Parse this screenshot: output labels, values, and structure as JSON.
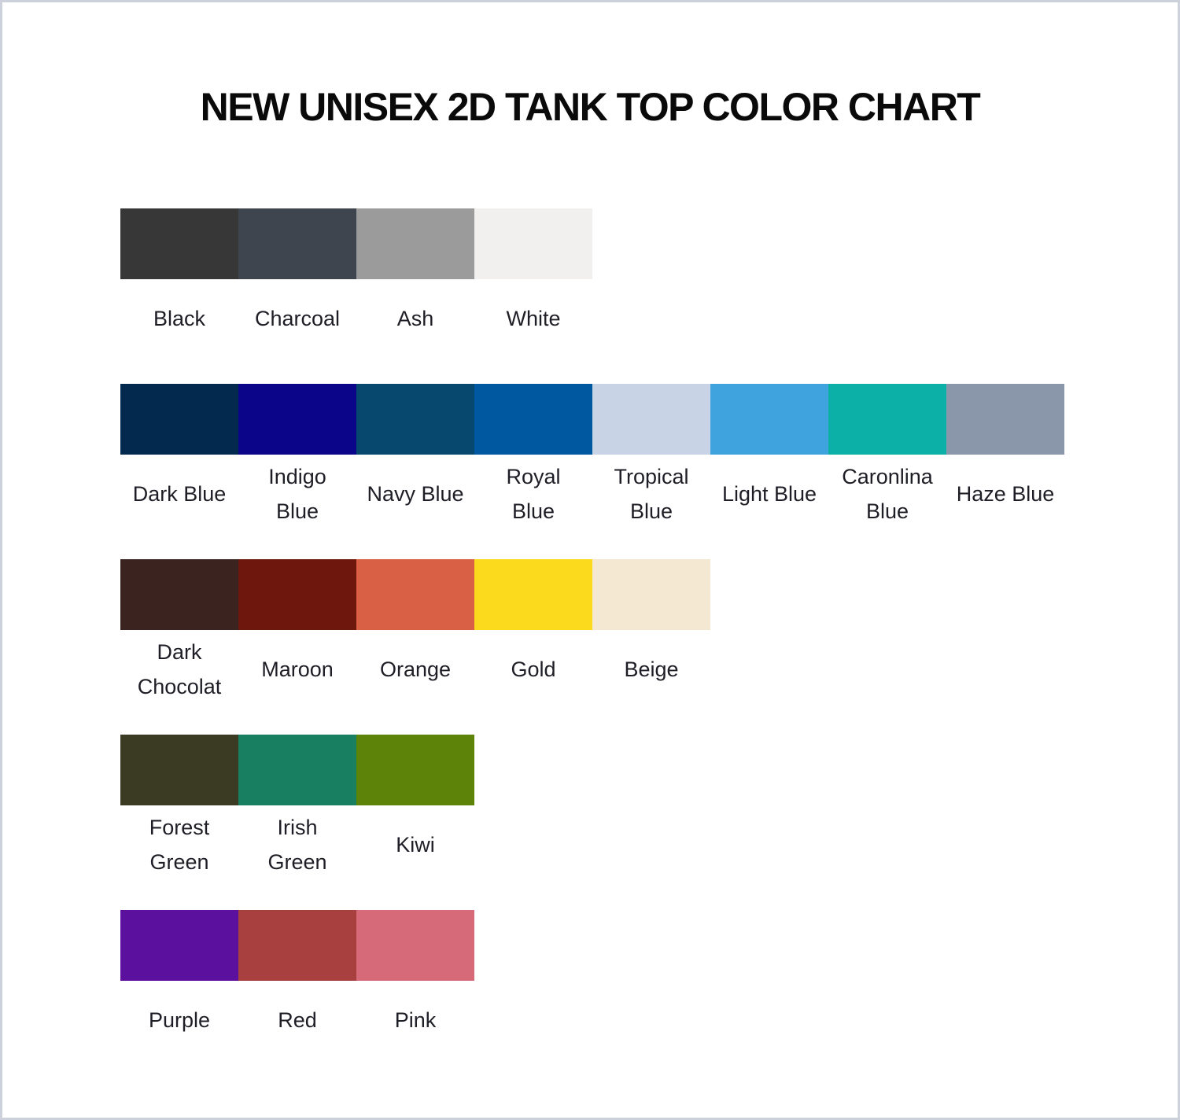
{
  "title": "NEW UNISEX 2D TANK TOP COLOR CHART",
  "chart_data": {
    "type": "table",
    "title": "NEW UNISEX 2D TANK TOP COLOR CHART",
    "description": "Color swatch chart: rows of fabric color rectangles with color names beneath each swatch",
    "rows": [
      {
        "group": "neutrals",
        "swatches": [
          {
            "name": "Black",
            "hex": "#373737",
            "label_lines": [
              "Black"
            ]
          },
          {
            "name": "Charcoal",
            "hex": "#3f454e",
            "label_lines": [
              "Charcoal"
            ]
          },
          {
            "name": "Ash",
            "hex": "#9b9b9b",
            "label_lines": [
              "Ash"
            ]
          },
          {
            "name": "White",
            "hex": "#f1f0ee",
            "label_lines": [
              "White"
            ]
          }
        ]
      },
      {
        "group": "blues",
        "swatches": [
          {
            "name": "Dark Blue",
            "hex": "#032a4e",
            "label_lines": [
              "Dark Blue"
            ]
          },
          {
            "name": "Indigo Blue",
            "hex": "#0b0689",
            "label_lines": [
              "Indigo",
              "Blue"
            ]
          },
          {
            "name": "Navy Blue",
            "hex": "#07486e",
            "label_lines": [
              "Navy Blue"
            ]
          },
          {
            "name": "Royal Blue",
            "hex": "#0058a0",
            "label_lines": [
              "Royal",
              "Blue"
            ]
          },
          {
            "name": "Tropical Blue",
            "hex": "#c8d3e6",
            "label_lines": [
              "Tropical",
              "Blue"
            ]
          },
          {
            "name": "Light Blue",
            "hex": "#3fa3dd",
            "label_lines": [
              "Light Blue"
            ]
          },
          {
            "name": "Caronlina Blue",
            "hex": "#0cb0a6",
            "label_lines": [
              "Caronlina",
              "Blue"
            ]
          },
          {
            "name": "Haze Blue",
            "hex": "#8a96aa",
            "label_lines": [
              "Haze Blue"
            ]
          }
        ]
      },
      {
        "group": "warms",
        "swatches": [
          {
            "name": "Dark Chocolat",
            "hex": "#3b2420",
            "label_lines": [
              "Dark",
              "Chocolat"
            ]
          },
          {
            "name": "Maroon",
            "hex": "#6e170c",
            "label_lines": [
              "Maroon"
            ]
          },
          {
            "name": "Orange",
            "hex": "#d95f45",
            "label_lines": [
              "Orange"
            ]
          },
          {
            "name": "Gold",
            "hex": "#fbd91d",
            "label_lines": [
              "Gold"
            ]
          },
          {
            "name": "Beige",
            "hex": "#f4e8d3",
            "label_lines": [
              "Beige"
            ]
          }
        ]
      },
      {
        "group": "greens",
        "swatches": [
          {
            "name": "Forest Green",
            "hex": "#3b3b24",
            "label_lines": [
              "Forest",
              "Green"
            ]
          },
          {
            "name": "Irish Green",
            "hex": "#188061",
            "label_lines": [
              "Irish",
              "Green"
            ]
          },
          {
            "name": "Kiwi",
            "hex": "#5d8409",
            "label_lines": [
              "Kiwi"
            ]
          }
        ]
      },
      {
        "group": "purples-reds",
        "swatches": [
          {
            "name": "Purple",
            "hex": "#5b119e",
            "label_lines": [
              "Purple"
            ]
          },
          {
            "name": "Red",
            "hex": "#a84040",
            "label_lines": [
              "Red"
            ]
          },
          {
            "name": "Pink",
            "hex": "#d66a78",
            "label_lines": [
              "Pink"
            ]
          }
        ]
      }
    ]
  }
}
